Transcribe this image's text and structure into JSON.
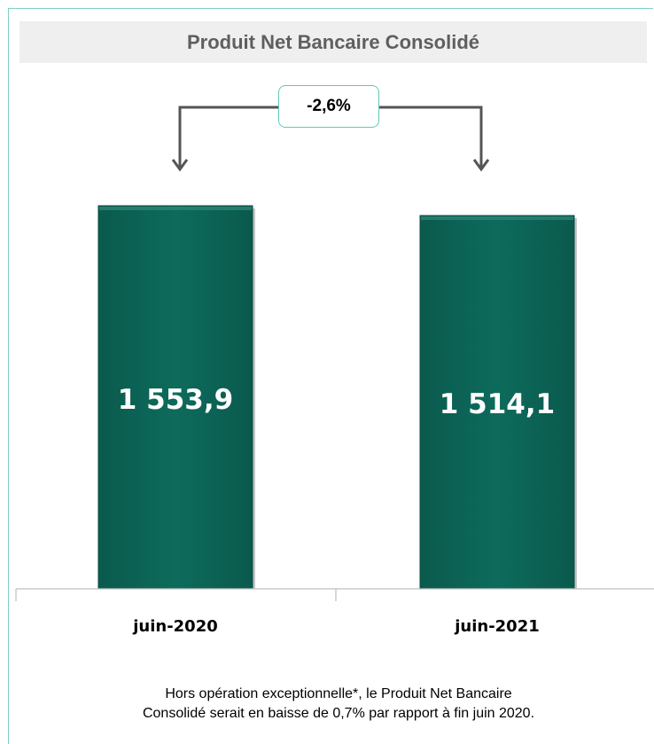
{
  "chart_data": {
    "type": "bar",
    "title": "Produit Net Bancaire Consolidé",
    "categories": [
      "juin-2020",
      "juin-2021"
    ],
    "values": [
      1553.9,
      1514.1
    ],
    "value_labels": [
      "1 553,9",
      "1 514,1"
    ],
    "change_label": "-2,6%",
    "ylim": [
      0,
      1553.9
    ],
    "grid": false,
    "legend": "none",
    "bar_color": "#0d6b5c"
  },
  "footnote": {
    "line1": "Hors opération exceptionnelle*, le Produit Net Bancaire",
    "line2": "Consolidé serait en baisse de 0,7% par rapport à fin juin 2020."
  }
}
